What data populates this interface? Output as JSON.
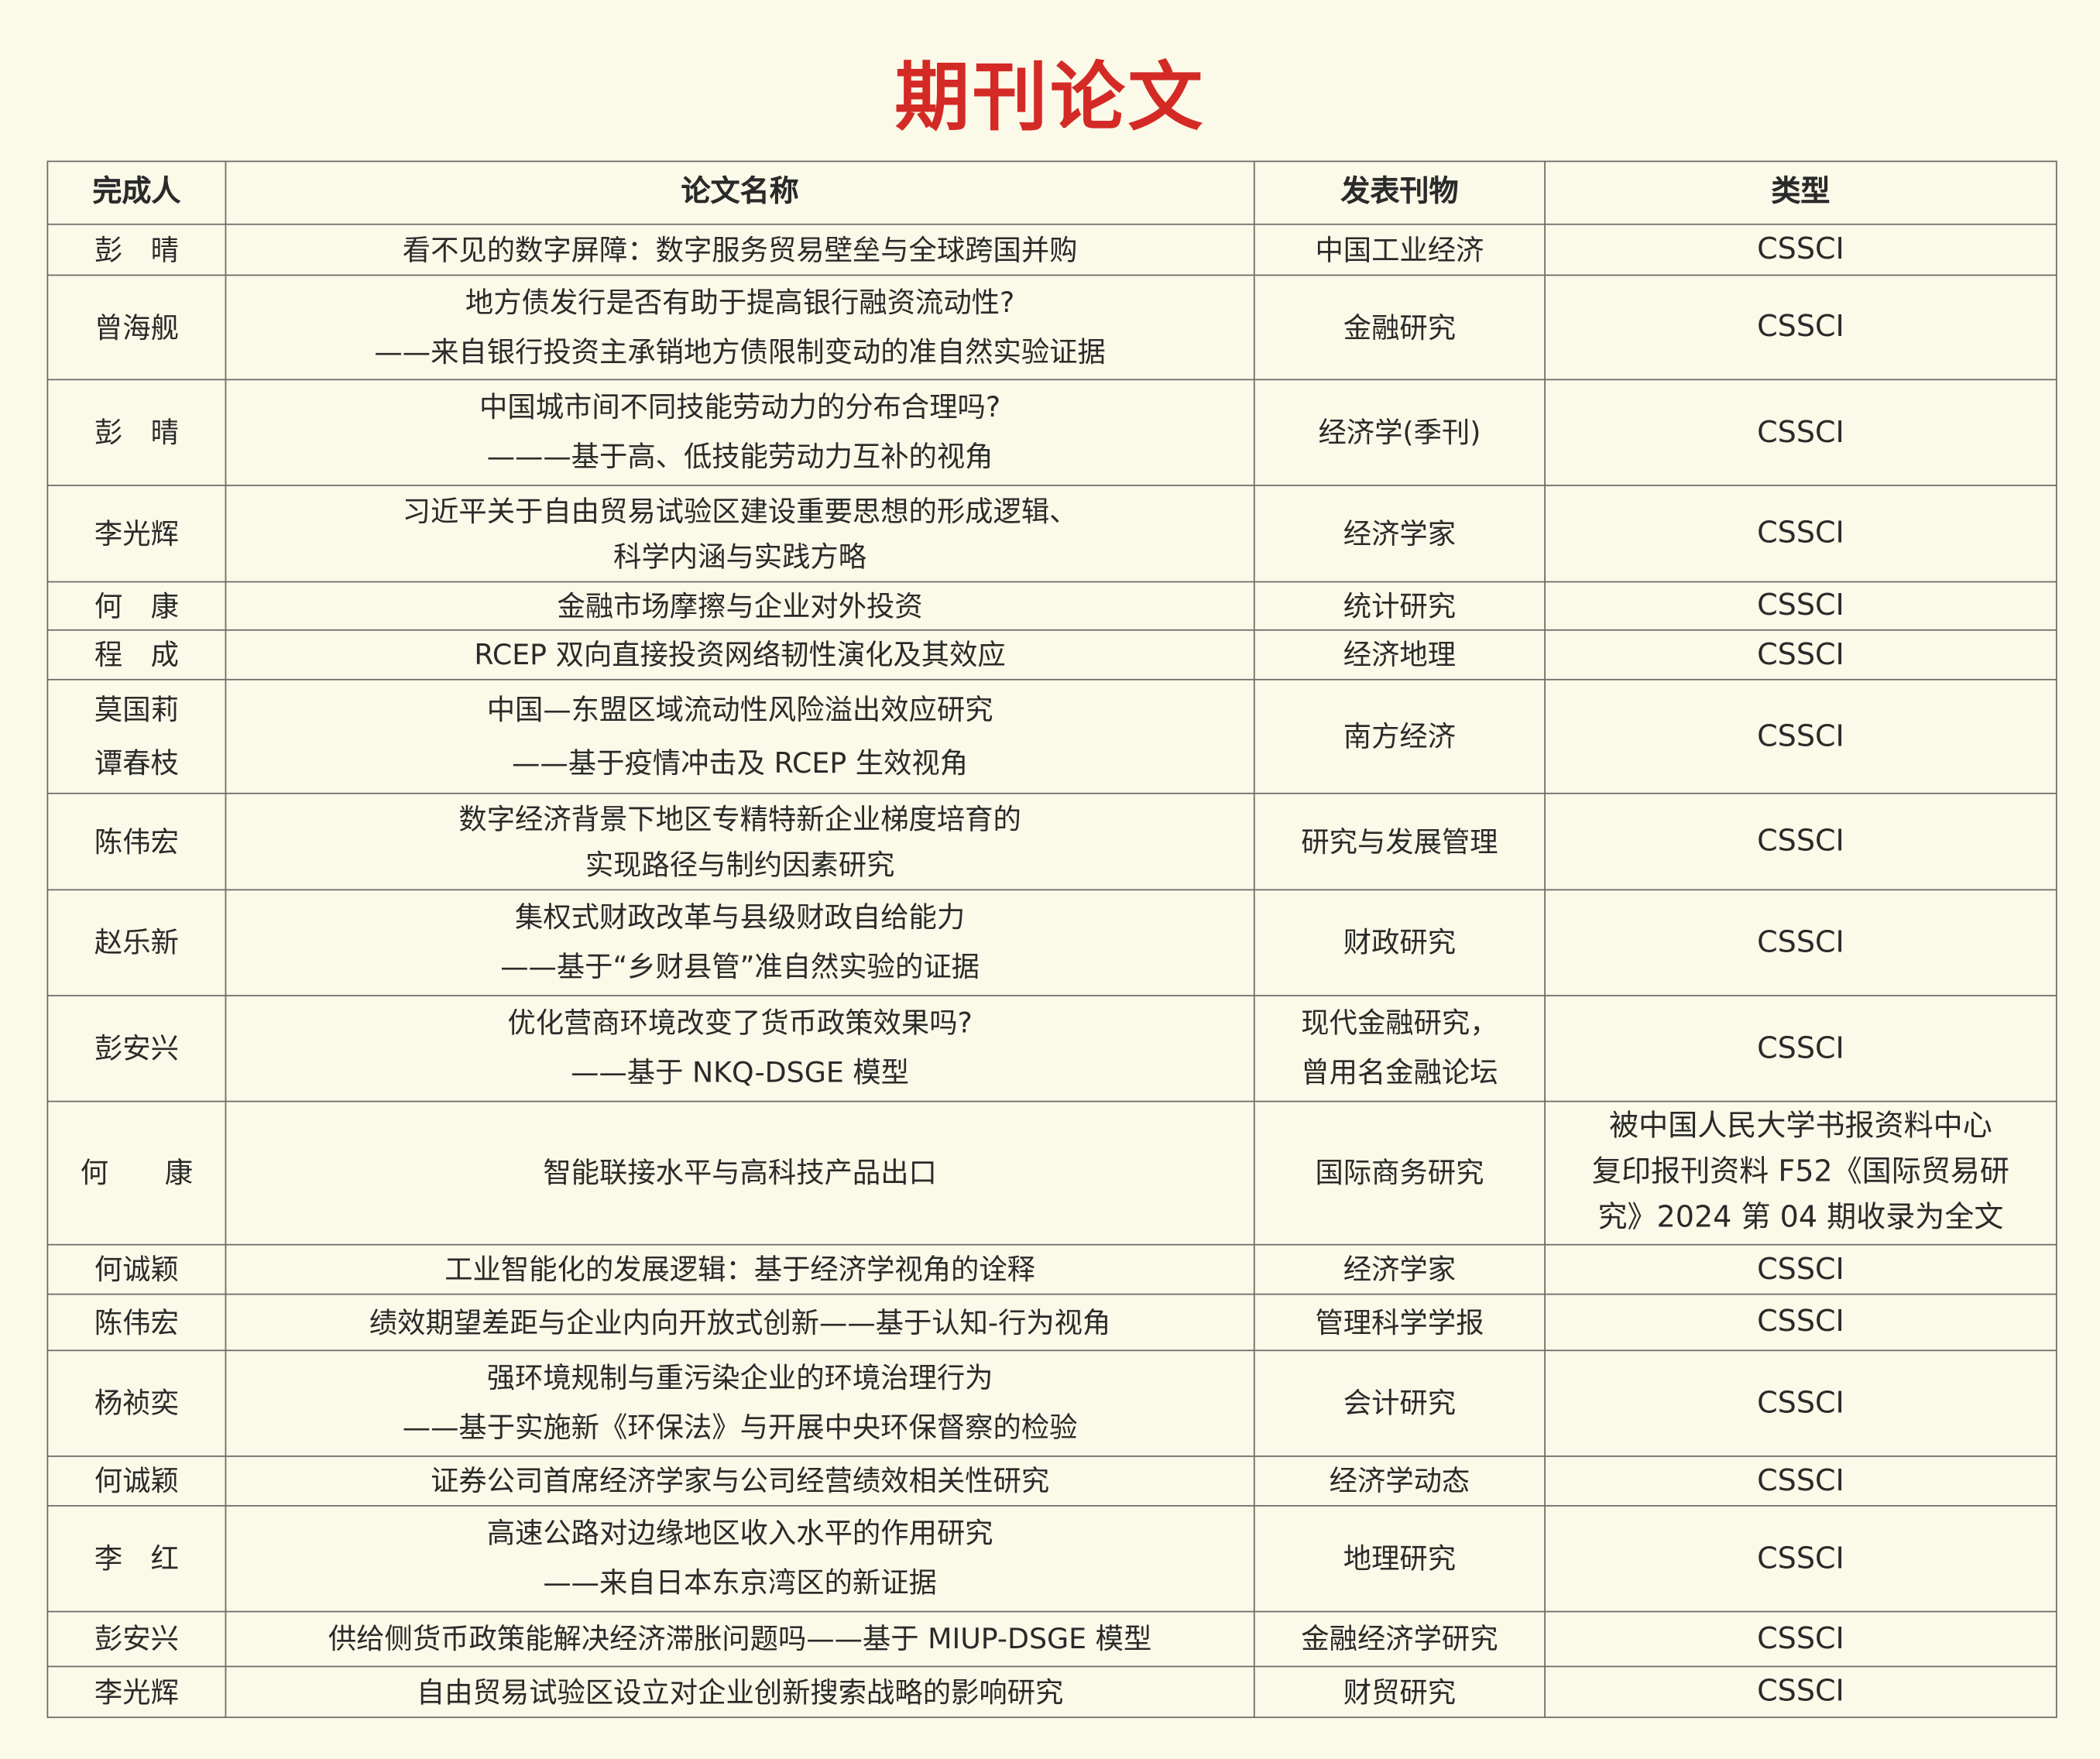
{
  "title": "期刊论文",
  "colors": {
    "title": "#d42a26",
    "background": "#fbf9e8",
    "border": "#6a6a66"
  },
  "table": {
    "headers": [
      "完成人",
      "论文名称",
      "发表刊物",
      "类型"
    ],
    "rows": [
      {
        "author": [
          "彭　晴"
        ],
        "title": [
          "看不见的数字屏障：数字服务贸易壁垒与全球跨国并购"
        ],
        "journal": [
          "中国工业经济"
        ],
        "type": [
          "CSSCI"
        ]
      },
      {
        "author": [
          "曾海舰"
        ],
        "title": [
          "地方债发行是否有助于提高银行融资流动性?",
          "——来自银行投资主承销地方债限制变动的准自然实验证据"
        ],
        "journal": [
          "金融研究"
        ],
        "type": [
          "CSSCI"
        ]
      },
      {
        "author": [
          "彭　晴"
        ],
        "title": [
          "中国城市间不同技能劳动力的分布合理吗?",
          "———基于高、低技能劳动力互补的视角"
        ],
        "journal": [
          "经济学(季刊)"
        ],
        "type": [
          "CSSCI"
        ]
      },
      {
        "author": [
          "李光辉"
        ],
        "title": [
          "习近平关于自由贸易试验区建设重要思想的形成逻辑、",
          "科学内涵与实践方略"
        ],
        "journal": [
          "经济学家"
        ],
        "type": [
          "CSSCI"
        ]
      },
      {
        "author": [
          "何　康"
        ],
        "title": [
          "金融市场摩擦与企业对外投资"
        ],
        "journal": [
          "统计研究"
        ],
        "type": [
          "CSSCI"
        ]
      },
      {
        "author": [
          "程　成"
        ],
        "title": [
          "RCEP 双向直接投资网络韧性演化及其效应"
        ],
        "journal": [
          "经济地理"
        ],
        "type": [
          "CSSCI"
        ]
      },
      {
        "author": [
          "莫国莉",
          "谭春枝"
        ],
        "title": [
          "中国—东盟区域流动性风险溢出效应研究",
          "——基于疫情冲击及 RCEP 生效视角"
        ],
        "journal": [
          "南方经济"
        ],
        "type": [
          "CSSCI"
        ]
      },
      {
        "author": [
          "陈伟宏"
        ],
        "title": [
          "数字经济背景下地区专精特新企业梯度培育的",
          "实现路径与制约因素研究"
        ],
        "journal": [
          "研究与发展管理"
        ],
        "type": [
          "CSSCI"
        ]
      },
      {
        "author": [
          "赵乐新"
        ],
        "title": [
          "集权式财政改革与县级财政自给能力",
          "——基于“乡财县管”准自然实验的证据"
        ],
        "journal": [
          "财政研究"
        ],
        "type": [
          "CSSCI"
        ]
      },
      {
        "author": [
          "彭安兴"
        ],
        "title": [
          "优化营商环境改变了货币政策效果吗?",
          "——基于 NKQ-DSGE 模型"
        ],
        "journal": [
          "现代金融研究，",
          "曾用名金融论坛"
        ],
        "type": [
          "CSSCI"
        ]
      },
      {
        "author": [
          "何　　康"
        ],
        "title": [
          "智能联接水平与高科技产品出口"
        ],
        "journal": [
          "国际商务研究"
        ],
        "type": [
          "被中国人民大学书报资料中心",
          "复印报刊资料 F52《国际贸易研",
          "究》2024 第 04 期收录为全文"
        ]
      },
      {
        "author": [
          "何诚颖"
        ],
        "title": [
          "工业智能化的发展逻辑：基于经济学视角的诠释"
        ],
        "journal": [
          "经济学家"
        ],
        "type": [
          "CSSCI"
        ]
      },
      {
        "author": [
          "陈伟宏"
        ],
        "title": [
          "绩效期望差距与企业内向开放式创新——基于认知-行为视角"
        ],
        "journal": [
          "管理科学学报"
        ],
        "type": [
          "CSSCI"
        ]
      },
      {
        "author": [
          "杨祯奕"
        ],
        "title": [
          "强环境规制与重污染企业的环境治理行为",
          "——基于实施新《环保法》与开展中央环保督察的检验"
        ],
        "journal": [
          "会计研究"
        ],
        "type": [
          "CSSCI"
        ]
      },
      {
        "author": [
          "何诚颖"
        ],
        "title": [
          "证券公司首席经济学家与公司经营绩效相关性研究"
        ],
        "journal": [
          "经济学动态"
        ],
        "type": [
          "CSSCI"
        ]
      },
      {
        "author": [
          "李　红"
        ],
        "title": [
          "高速公路对边缘地区收入水平的作用研究",
          "——来自日本东京湾区的新证据"
        ],
        "journal": [
          "地理研究"
        ],
        "type": [
          "CSSCI"
        ]
      },
      {
        "author": [
          "彭安兴"
        ],
        "title": [
          "供给侧货币政策能解决经济滞胀问题吗——基于 MIUP-DSGE 模型"
        ],
        "journal": [
          "金融经济学研究"
        ],
        "type": [
          "CSSCI"
        ]
      },
      {
        "author": [
          "李光辉"
        ],
        "title": [
          "自由贸易试验区设立对企业创新搜索战略的影响研究"
        ],
        "journal": [
          "财贸研究"
        ],
        "type": [
          "CSSCI"
        ]
      }
    ]
  }
}
